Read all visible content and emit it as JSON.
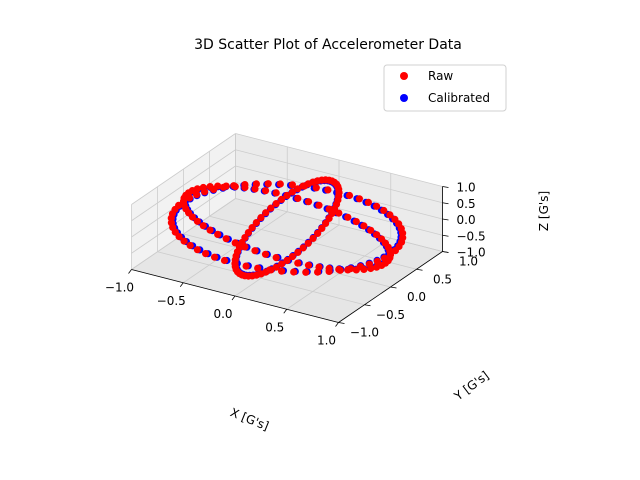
{
  "chart_data": {
    "type": "scatter",
    "projection": "3d",
    "title": "3D Scatter Plot of Accelerometer Data",
    "xlabel": "X [G's]",
    "ylabel": "Y [G's]",
    "zlabel": "Z [G's]",
    "xlim": [
      -1.0,
      1.0
    ],
    "ylim": [
      -1.0,
      1.0
    ],
    "zlim": [
      -1.0,
      1.0
    ],
    "xticks": [
      "−1.0",
      "−0.5",
      "0.0",
      "0.5",
      "1.0"
    ],
    "yticks": [
      "−1.0",
      "−0.5",
      "0.0",
      "0.5",
      "1.0"
    ],
    "zticks": [
      "−1.0",
      "−0.5",
      "0.0",
      "0.5",
      "1.0"
    ],
    "grid": true,
    "legend_position": "top-right",
    "series": [
      {
        "name": "Raw",
        "color": "#ff0000",
        "rings": [
          {
            "plane": "xy",
            "radius": 1.0,
            "count": 60
          },
          {
            "plane": "xz",
            "radius": 1.0,
            "count": 60
          },
          {
            "plane": "yz",
            "radius": 1.0,
            "count": 60
          }
        ]
      },
      {
        "name": "Calibrated",
        "color": "#0000ff",
        "rings": [
          {
            "plane": "xy",
            "radius": 1.0,
            "count": 60
          },
          {
            "plane": "xz",
            "radius": 1.0,
            "count": 60
          },
          {
            "plane": "yz",
            "radius": 1.0,
            "count": 60
          }
        ]
      }
    ]
  }
}
